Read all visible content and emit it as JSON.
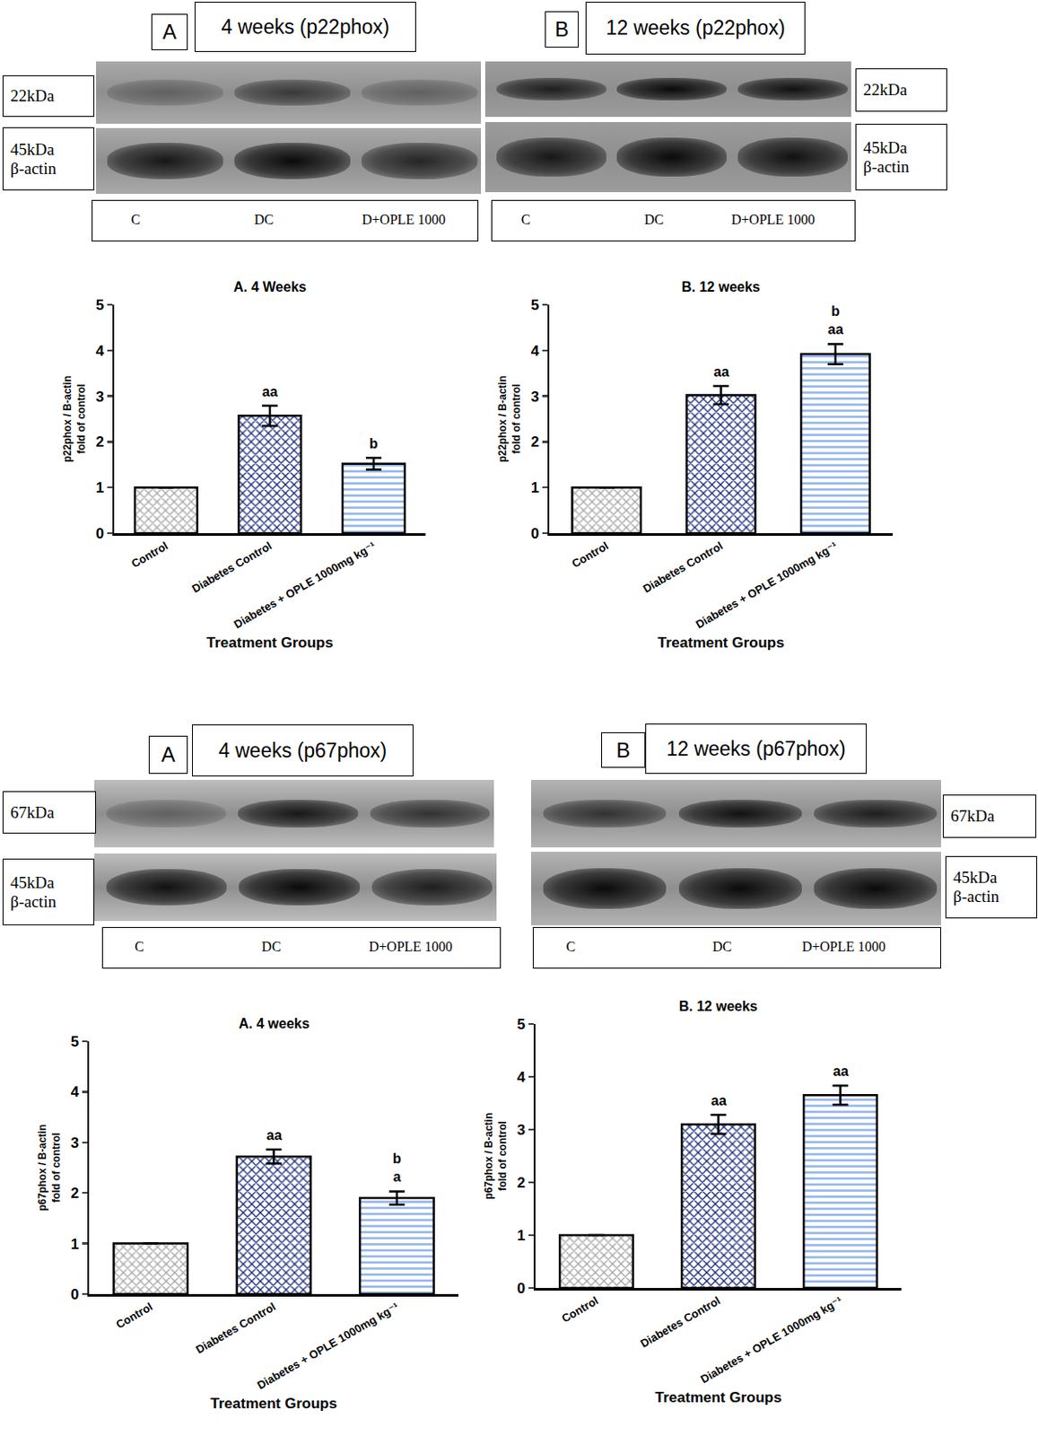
{
  "blots": [
    {
      "panel": "A",
      "title": "4 weeks (p22phox)",
      "target_label": "22kDa",
      "control_label": [
        "45kDa",
        "β-actin"
      ],
      "lanes": [
        "C",
        "DC",
        "D+OPLE 1000"
      ]
    },
    {
      "panel": "B",
      "title": "12 weeks (p22phox)",
      "target_label": "22kDa",
      "control_label": [
        "45kDa",
        "β-actin"
      ],
      "lanes": [
        "C",
        "DC",
        "D+OPLE 1000"
      ]
    },
    {
      "panel": "A",
      "title": "4 weeks (p67phox)",
      "target_label": "67kDa",
      "control_label": [
        "45kDa",
        "β-actin"
      ],
      "lanes": [
        "C",
        "DC",
        "D+OPLE 1000"
      ]
    },
    {
      "panel": "B",
      "title": "12 weeks (p67phox)",
      "target_label": "67kDa",
      "control_label": [
        "45kDa",
        "β-actin"
      ],
      "lanes": [
        "C",
        "DC",
        "D+OPLE 1000"
      ]
    }
  ],
  "chart_data": [
    {
      "type": "bar",
      "title": "A. 4 Weeks",
      "x_label": "Treatment Groups",
      "y_label": [
        "p22phox / B-actin",
        "fold of control"
      ],
      "categories": [
        "Control",
        "Diabetes Control",
        "Diabetes + OPLE 1000mg kg⁻¹"
      ],
      "values": [
        1,
        2.57,
        1.52
      ],
      "errors": [
        0,
        0.22,
        0.13
      ],
      "colors": [
        "#a6a6a6",
        "#1b2a7a",
        "#8fb3ea"
      ],
      "ylim": [
        0,
        5
      ],
      "yticks": [
        0,
        1,
        2,
        3,
        4,
        5
      ],
      "grid": false,
      "annotations": [
        {
          "category": "Diabetes Control",
          "text": [
            "aa"
          ]
        },
        {
          "category": "Diabetes + OPLE 1000mg kg⁻¹",
          "text": [
            "b"
          ]
        }
      ]
    },
    {
      "type": "bar",
      "title": "B. 12 weeks",
      "x_label": "Treatment Groups",
      "y_label": [
        "p22phox / B-actin",
        "fold of control"
      ],
      "categories": [
        "Control",
        "Diabetes Control",
        "Diabetes + OPLE 1000mg kg⁻¹"
      ],
      "values": [
        1,
        3.02,
        3.92
      ],
      "errors": [
        0,
        0.2,
        0.22
      ],
      "colors": [
        "#a6a6a6",
        "#1b2a7a",
        "#8fb3ea"
      ],
      "ylim": [
        0,
        5
      ],
      "yticks": [
        0,
        1,
        2,
        3,
        4,
        5
      ],
      "grid": false,
      "annotations": [
        {
          "category": "Diabetes Control",
          "text": [
            "aa"
          ]
        },
        {
          "category": "Diabetes + OPLE 1000mg kg⁻¹",
          "text": [
            "b",
            "aa"
          ]
        }
      ]
    },
    {
      "type": "bar",
      "title": "A. 4 weeks",
      "x_label": "Treatment Groups",
      "y_label": [
        "p67phox / B-actin",
        "fold of control"
      ],
      "categories": [
        "Control",
        "Diabetes Control",
        "Diabetes + OPLE 1000mg kg⁻¹"
      ],
      "values": [
        1,
        2.72,
        1.9
      ],
      "errors": [
        0,
        0.14,
        0.13
      ],
      "colors": [
        "#a6a6a6",
        "#1b2a7a",
        "#8fb3ea"
      ],
      "ylim": [
        0,
        5
      ],
      "yticks": [
        0,
        1,
        2,
        3,
        4,
        5
      ],
      "grid": false,
      "annotations": [
        {
          "category": "Diabetes Control",
          "text": [
            "aa"
          ]
        },
        {
          "category": "Diabetes + OPLE 1000mg kg⁻¹",
          "text": [
            "b",
            "a"
          ]
        }
      ]
    },
    {
      "type": "bar",
      "title": "B. 12 weeks",
      "x_label": "Treatment Groups",
      "y_label": [
        "p67phox / B-actin",
        "fold of control"
      ],
      "categories": [
        "Control",
        "Diabetes Control",
        "Diabetes + OPLE 1000mg kg⁻¹"
      ],
      "values": [
        1,
        3.1,
        3.65
      ],
      "errors": [
        0,
        0.18,
        0.18
      ],
      "colors": [
        "#a6a6a6",
        "#1b2a7a",
        "#8fb3ea"
      ],
      "ylim": [
        0,
        5
      ],
      "yticks": [
        0,
        1,
        2,
        3,
        4,
        5
      ],
      "grid": false,
      "annotations": [
        {
          "category": "Diabetes Control",
          "text": [
            "aa"
          ]
        },
        {
          "category": "Diabetes + OPLE 1000mg kg⁻¹",
          "text": [
            "aa"
          ]
        }
      ]
    }
  ]
}
